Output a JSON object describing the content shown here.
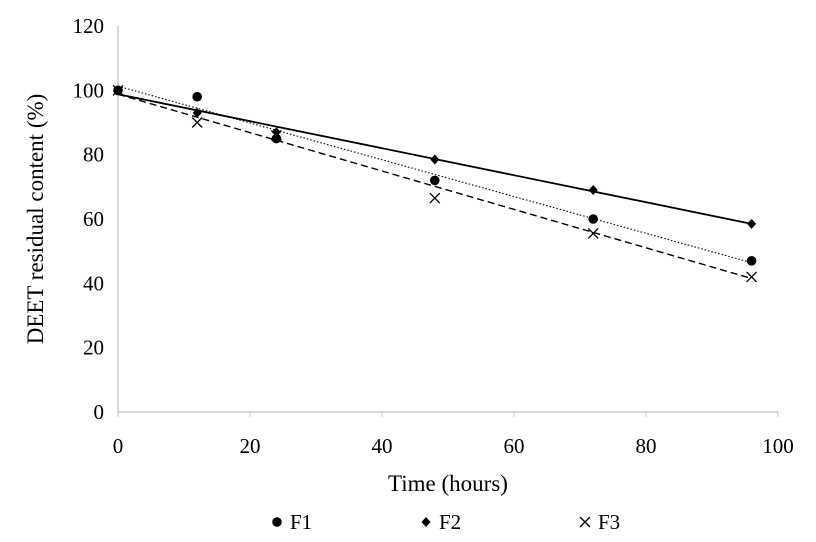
{
  "chart_data": {
    "type": "scatter",
    "title": "",
    "xlabel": "Time (hours)",
    "ylabel": "DEET residual content (%)",
    "xlim": [
      0,
      100
    ],
    "ylim": [
      0,
      120
    ],
    "xticks": [
      0,
      20,
      40,
      60,
      80,
      100
    ],
    "yticks": [
      0,
      20,
      40,
      60,
      80,
      100,
      120
    ],
    "grid": false,
    "legend": "bottom",
    "series": [
      {
        "name": "F1",
        "marker": "circle",
        "x": [
          0,
          12,
          24,
          48,
          72,
          96
        ],
        "y": [
          100,
          98,
          85,
          72,
          60,
          47
        ],
        "trendline": {
          "style": "dotted",
          "y0": 101.3,
          "y1": 46.4
        }
      },
      {
        "name": "F2",
        "marker": "diamond",
        "x": [
          0,
          12,
          24,
          48,
          72,
          96
        ],
        "y": [
          100,
          93,
          87,
          78.5,
          69,
          58.5
        ],
        "trendline": {
          "style": "solid",
          "y0": 98.8,
          "y1": 58.5
        }
      },
      {
        "name": "F3",
        "marker": "x",
        "x": [
          0,
          12,
          24,
          48,
          72,
          96
        ],
        "y": [
          100,
          90,
          86,
          66.5,
          55.5,
          42
        ],
        "trendline": {
          "style": "dashed",
          "y0": 98.8,
          "y1": 41.5
        }
      }
    ]
  }
}
